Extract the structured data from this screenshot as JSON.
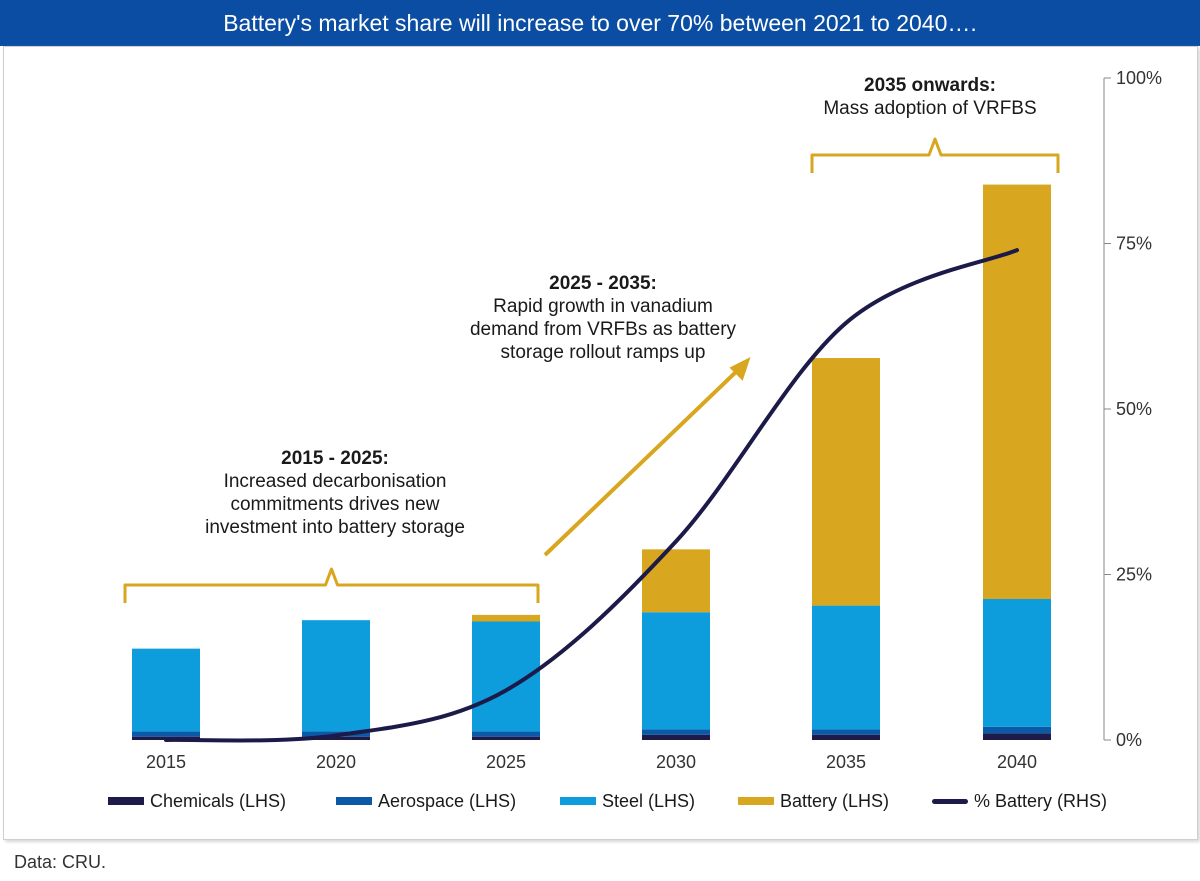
{
  "title": "Battery's market share will increase to over 70% between 2021 to 2040….",
  "footnote": "Data: CRU.",
  "colors": {
    "chemicals": "#1e1b4b",
    "aerospace": "#0b5aa8",
    "steel": "#0d9ddc",
    "battery": "#d9a61f",
    "line": "#1c1a48",
    "bracket": "#d9a61f",
    "title_bg": "#0a4da2"
  },
  "annotations": {
    "a1": {
      "title": "2015 - 2025:",
      "text": [
        "Increased decarbonisation",
        "commitments drives new",
        "investment into battery storage"
      ]
    },
    "a2": {
      "title": "2025 - 2035:",
      "text": [
        "Rapid growth in vanadium",
        "demand from VRFBs as battery",
        "storage rollout ramps up"
      ]
    },
    "a3": {
      "title": "2035 onwards:",
      "text": [
        "Mass adoption of VRFBS"
      ]
    }
  },
  "legend": [
    {
      "key": "chemicals",
      "label": "Chemicals (LHS)"
    },
    {
      "key": "aerospace",
      "label": "Aerospace (LHS)"
    },
    {
      "key": "steel",
      "label": "Steel (LHS)"
    },
    {
      "key": "battery",
      "label": "Battery (LHS)"
    },
    {
      "key": "line",
      "label": "% Battery (RHS)"
    }
  ],
  "chart_data": {
    "type": "bar",
    "stacked": true,
    "title": "Battery's market share will increase to over 70% between 2021 to 2040….",
    "categories": [
      "2015",
      "2020",
      "2025",
      "2030",
      "2035",
      "2040"
    ],
    "series": [
      {
        "name": "Chemicals (LHS)",
        "values": [
          0.5,
          0.5,
          0.5,
          0.8,
          0.8,
          1.0
        ]
      },
      {
        "name": "Aerospace (LHS)",
        "values": [
          0.8,
          0.8,
          0.8,
          0.8,
          0.8,
          1.0
        ]
      },
      {
        "name": "Steel (LHS)",
        "values": [
          12.5,
          16.8,
          16.6,
          17.7,
          18.7,
          19.3
        ]
      },
      {
        "name": "Battery (LHS)",
        "values": [
          0,
          0,
          1.0,
          9.5,
          37.4,
          62.6
        ]
      }
    ],
    "line_series": {
      "name": "% Battery (RHS)",
      "values": [
        0,
        0.7,
        7.5,
        30,
        63,
        74
      ],
      "unit": "%"
    },
    "left_axis": {
      "visible": false,
      "ylim": [
        0,
        100
      ]
    },
    "right_axis": {
      "ticks": [
        "0%",
        "25%",
        "50%",
        "75%",
        "100%"
      ],
      "ylim": [
        0,
        100
      ]
    },
    "legend_position": "bottom",
    "grid": false
  }
}
